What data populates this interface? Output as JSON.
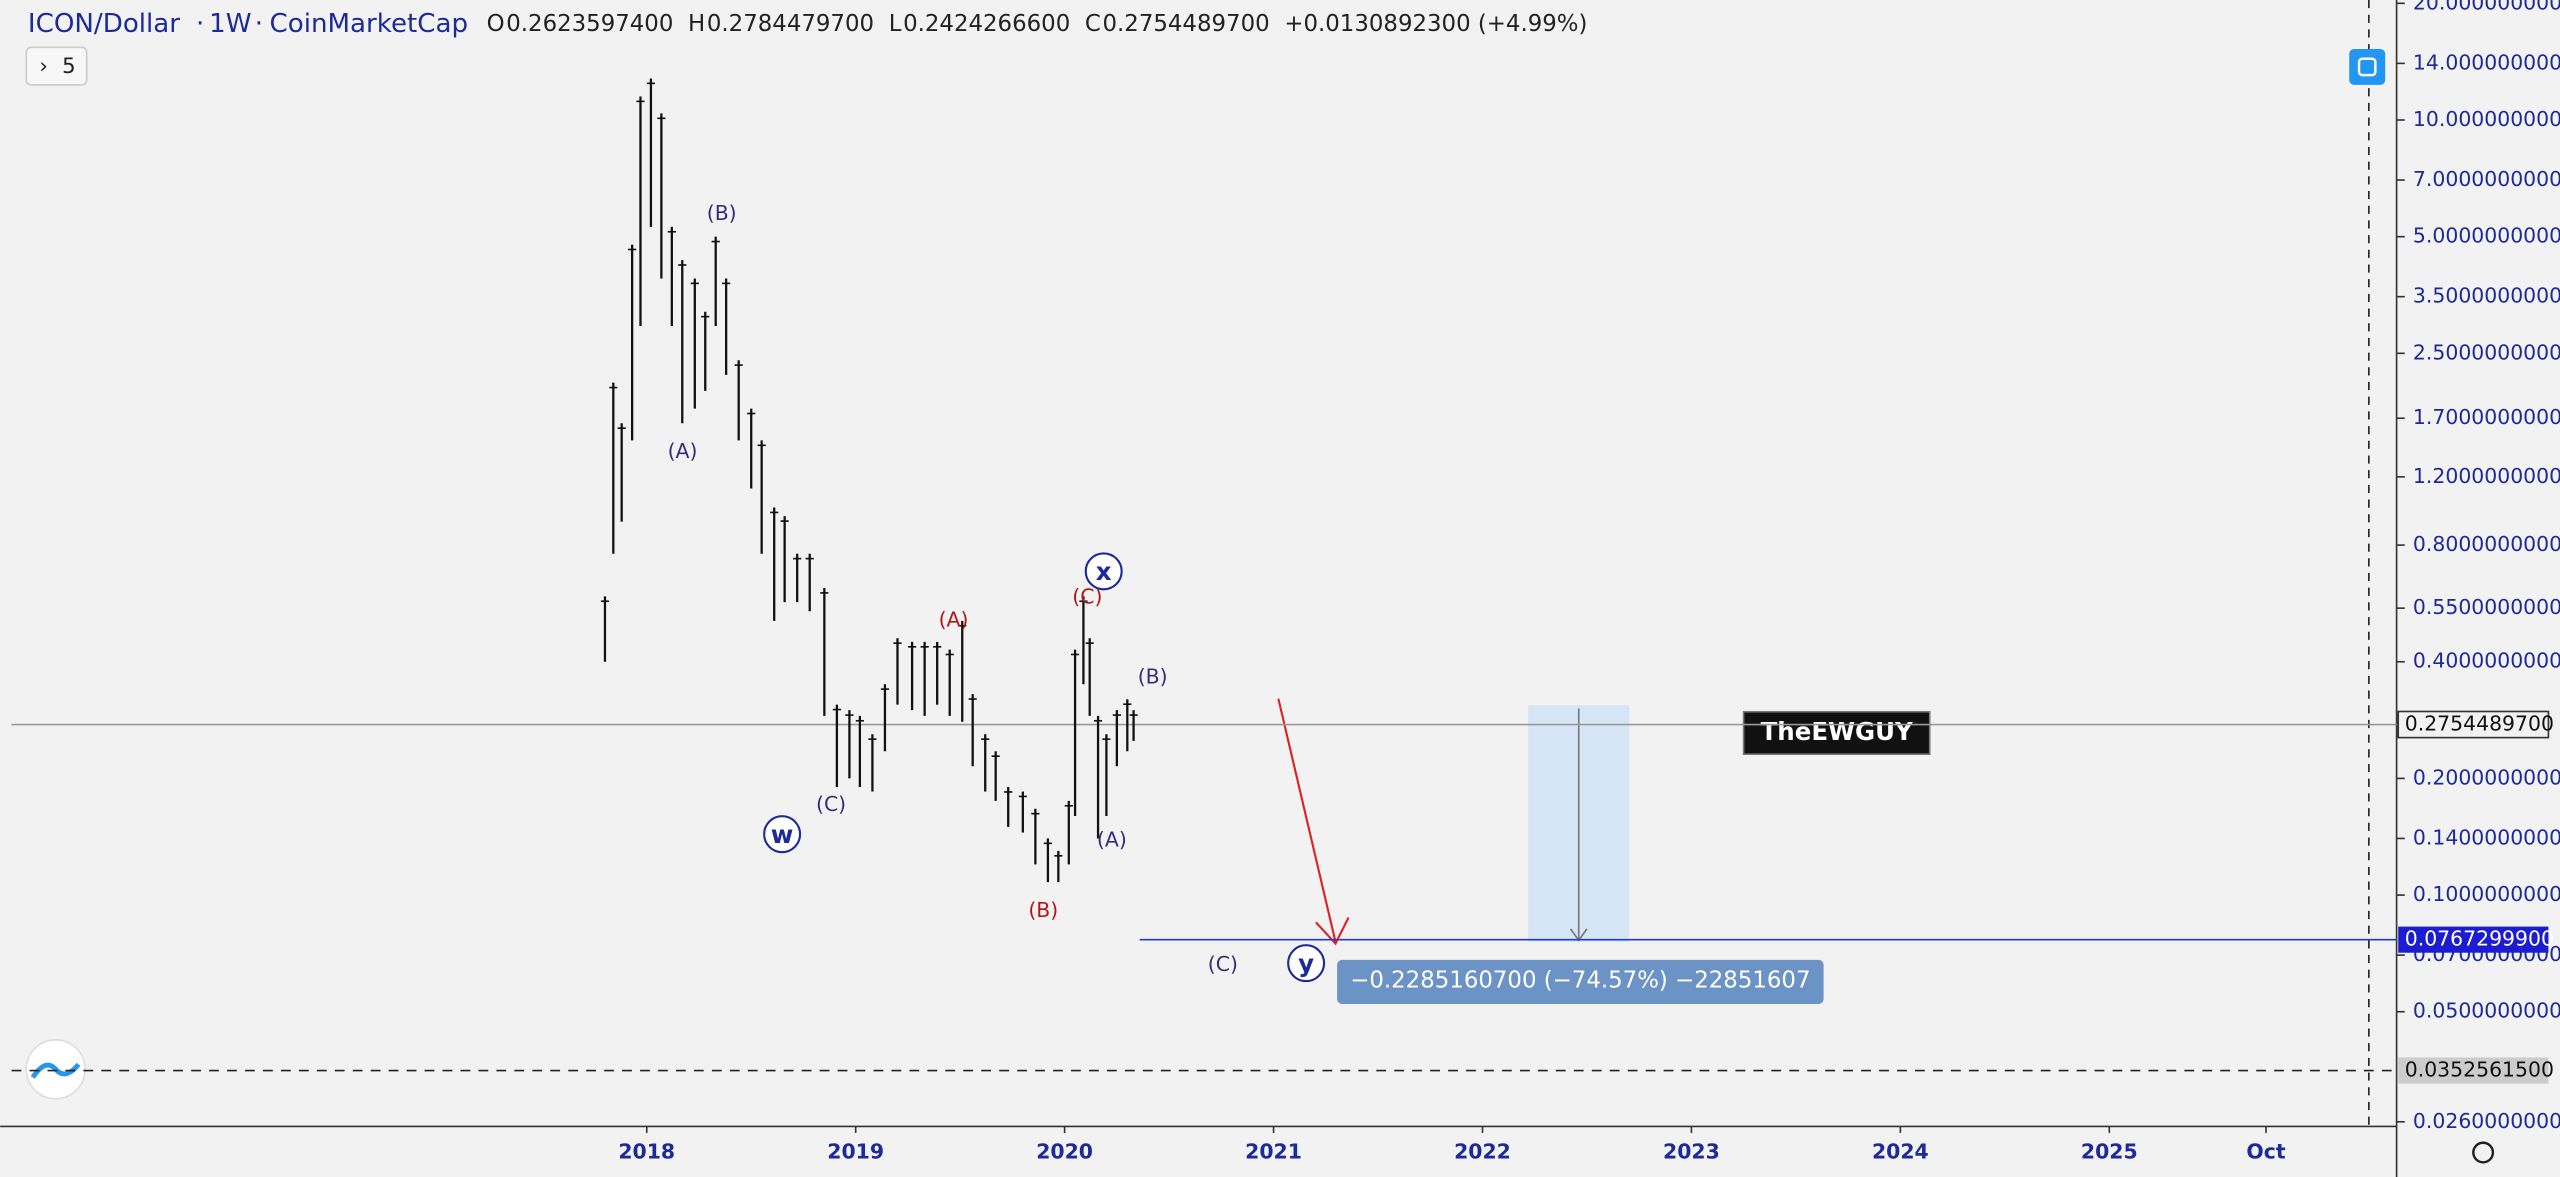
{
  "chart_data": {
    "type": "range-bar",
    "header": {
      "symbol": "ICON/Dollar",
      "interval": "1W",
      "source": "CoinMarketCap",
      "ohlc": [
        {
          "label": "O",
          "value": "0.2623597400"
        },
        {
          "label": "H",
          "value": "0.2784479700"
        },
        {
          "label": "L",
          "value": "0.2424266600"
        },
        {
          "label": "C",
          "value": "0.2754489700"
        }
      ],
      "change": "+0.0130892300 (+4.99%)"
    },
    "indicator_count": "5",
    "watermark": "TheEWGUY",
    "measure_label": "−0.2285160700 (−74.57%) −22851607",
    "x": [
      2017.8,
      2017.84,
      2017.88,
      2017.93,
      2017.97,
      2018.02,
      2018.07,
      2018.12,
      2018.17,
      2018.23,
      2018.28,
      2018.33,
      2018.38,
      2018.44,
      2018.5,
      2018.55,
      2018.61,
      2018.66,
      2018.72,
      2018.78,
      2018.85,
      2018.91,
      2018.97,
      2019.02,
      2019.08,
      2019.14,
      2019.2,
      2019.27,
      2019.33,
      2019.39,
      2019.45,
      2019.51,
      2019.56,
      2019.62,
      2019.67,
      2019.73,
      2019.8,
      2019.86,
      2019.92,
      2019.97,
      2020.02,
      2020.05,
      2020.09,
      2020.12,
      2020.16,
      2020.2,
      2020.25,
      2020.3,
      2020.33
    ],
    "high": [
      0.59,
      2.1,
      1.65,
      4.77,
      11.5,
      12.8,
      10.4,
      5.3,
      4.35,
      3.9,
      3.2,
      5.0,
      3.9,
      2.4,
      1.8,
      1.49,
      1.0,
      0.95,
      0.76,
      0.76,
      0.62,
      0.31,
      0.3,
      0.29,
      0.26,
      0.35,
      0.46,
      0.45,
      0.45,
      0.45,
      0.43,
      0.51,
      0.33,
      0.26,
      0.235,
      0.19,
      0.185,
      0.167,
      0.14,
      0.13,
      0.175,
      0.43,
      0.59,
      0.46,
      0.29,
      0.26,
      0.3,
      0.32,
      0.3
    ],
    "low": [
      0.4,
      0.76,
      0.92,
      1.49,
      2.94,
      5.3,
      3.9,
      2.94,
      1.65,
      1.8,
      2.0,
      2.94,
      2.2,
      1.49,
      1.12,
      0.76,
      0.51,
      0.57,
      0.57,
      0.54,
      0.29,
      0.19,
      0.2,
      0.19,
      0.185,
      0.235,
      0.31,
      0.3,
      0.29,
      0.31,
      0.29,
      0.28,
      0.215,
      0.185,
      0.175,
      0.15,
      0.145,
      0.12,
      0.108,
      0.108,
      0.12,
      0.16,
      0.35,
      0.29,
      0.14,
      0.16,
      0.215,
      0.235,
      0.25
    ],
    "color": "#111111",
    "log_scale": true,
    "xlim": [
      2014.96,
      2026.375
    ],
    "xticks": [
      2018,
      2019,
      2020,
      2021,
      2022,
      2023,
      2024,
      2025,
      {
        "value": 2025.75,
        "label": "Oct"
      }
    ],
    "ylim": [
      0.0253,
      20.4
    ],
    "yticks": [
      {
        "value": 20,
        "label": "20.0000000000"
      },
      {
        "value": 14,
        "label": "14.0000000000"
      },
      {
        "value": 10,
        "label": "10.0000000000"
      },
      {
        "value": 7,
        "label": "7.0000000000"
      },
      {
        "value": 5,
        "label": "5.0000000000"
      },
      {
        "value": 3.5,
        "label": "3.5000000000"
      },
      {
        "value": 2.5,
        "label": "2.5000000000"
      },
      {
        "value": 1.7,
        "label": "1.7000000000"
      },
      {
        "value": 1.2,
        "label": "1.2000000000"
      },
      {
        "value": 0.8,
        "label": "0.8000000000"
      },
      {
        "value": 0.55,
        "label": "0.5500000000"
      },
      {
        "value": 0.4,
        "label": "0.4000000000"
      },
      {
        "value": 0.2,
        "label": "0.2000000000"
      },
      {
        "value": 0.14,
        "label": "0.1400000000"
      },
      {
        "value": 0.1,
        "label": "0.1000000000"
      },
      {
        "value": 0.07,
        "label": "0.0700000000"
      },
      {
        "value": 0.05,
        "label": "0.0500000000"
      },
      {
        "value": 0.026,
        "label": "0.0260000000"
      }
    ],
    "price_lines": [
      {
        "value": 0.27544897,
        "label": "0.2754489700",
        "color": "#999999"
      },
      {
        "value": 0.07672999,
        "label": "0.0767299900",
        "color": "#1c3bd6"
      },
      {
        "value": 0.03525615,
        "label": "0.0352561500",
        "color": "#222222"
      }
    ],
    "wave_labels": [
      {
        "text": "(B)",
        "color": "#3a2a7a"
      },
      {
        "text": "(A)",
        "color": "#3a2a7a"
      },
      {
        "text": "(C)",
        "color": "#3a2a7a"
      },
      {
        "text": "w",
        "color": "#1c2a9a"
      },
      {
        "text": "(A)",
        "color": "#b01818"
      },
      {
        "text": "(B)",
        "color": "#b01818"
      },
      {
        "text": "(C)",
        "color": "#b01818"
      },
      {
        "text": "x",
        "color": "#1c2a9a"
      },
      {
        "text": "(B)",
        "color": "#3a2a7a"
      },
      {
        "text": "(A)",
        "color": "#3a2a7a"
      },
      {
        "text": "(C)",
        "color": "#3a2a7a"
      },
      {
        "text": "y",
        "color": "#1c2a9a"
      }
    ]
  }
}
